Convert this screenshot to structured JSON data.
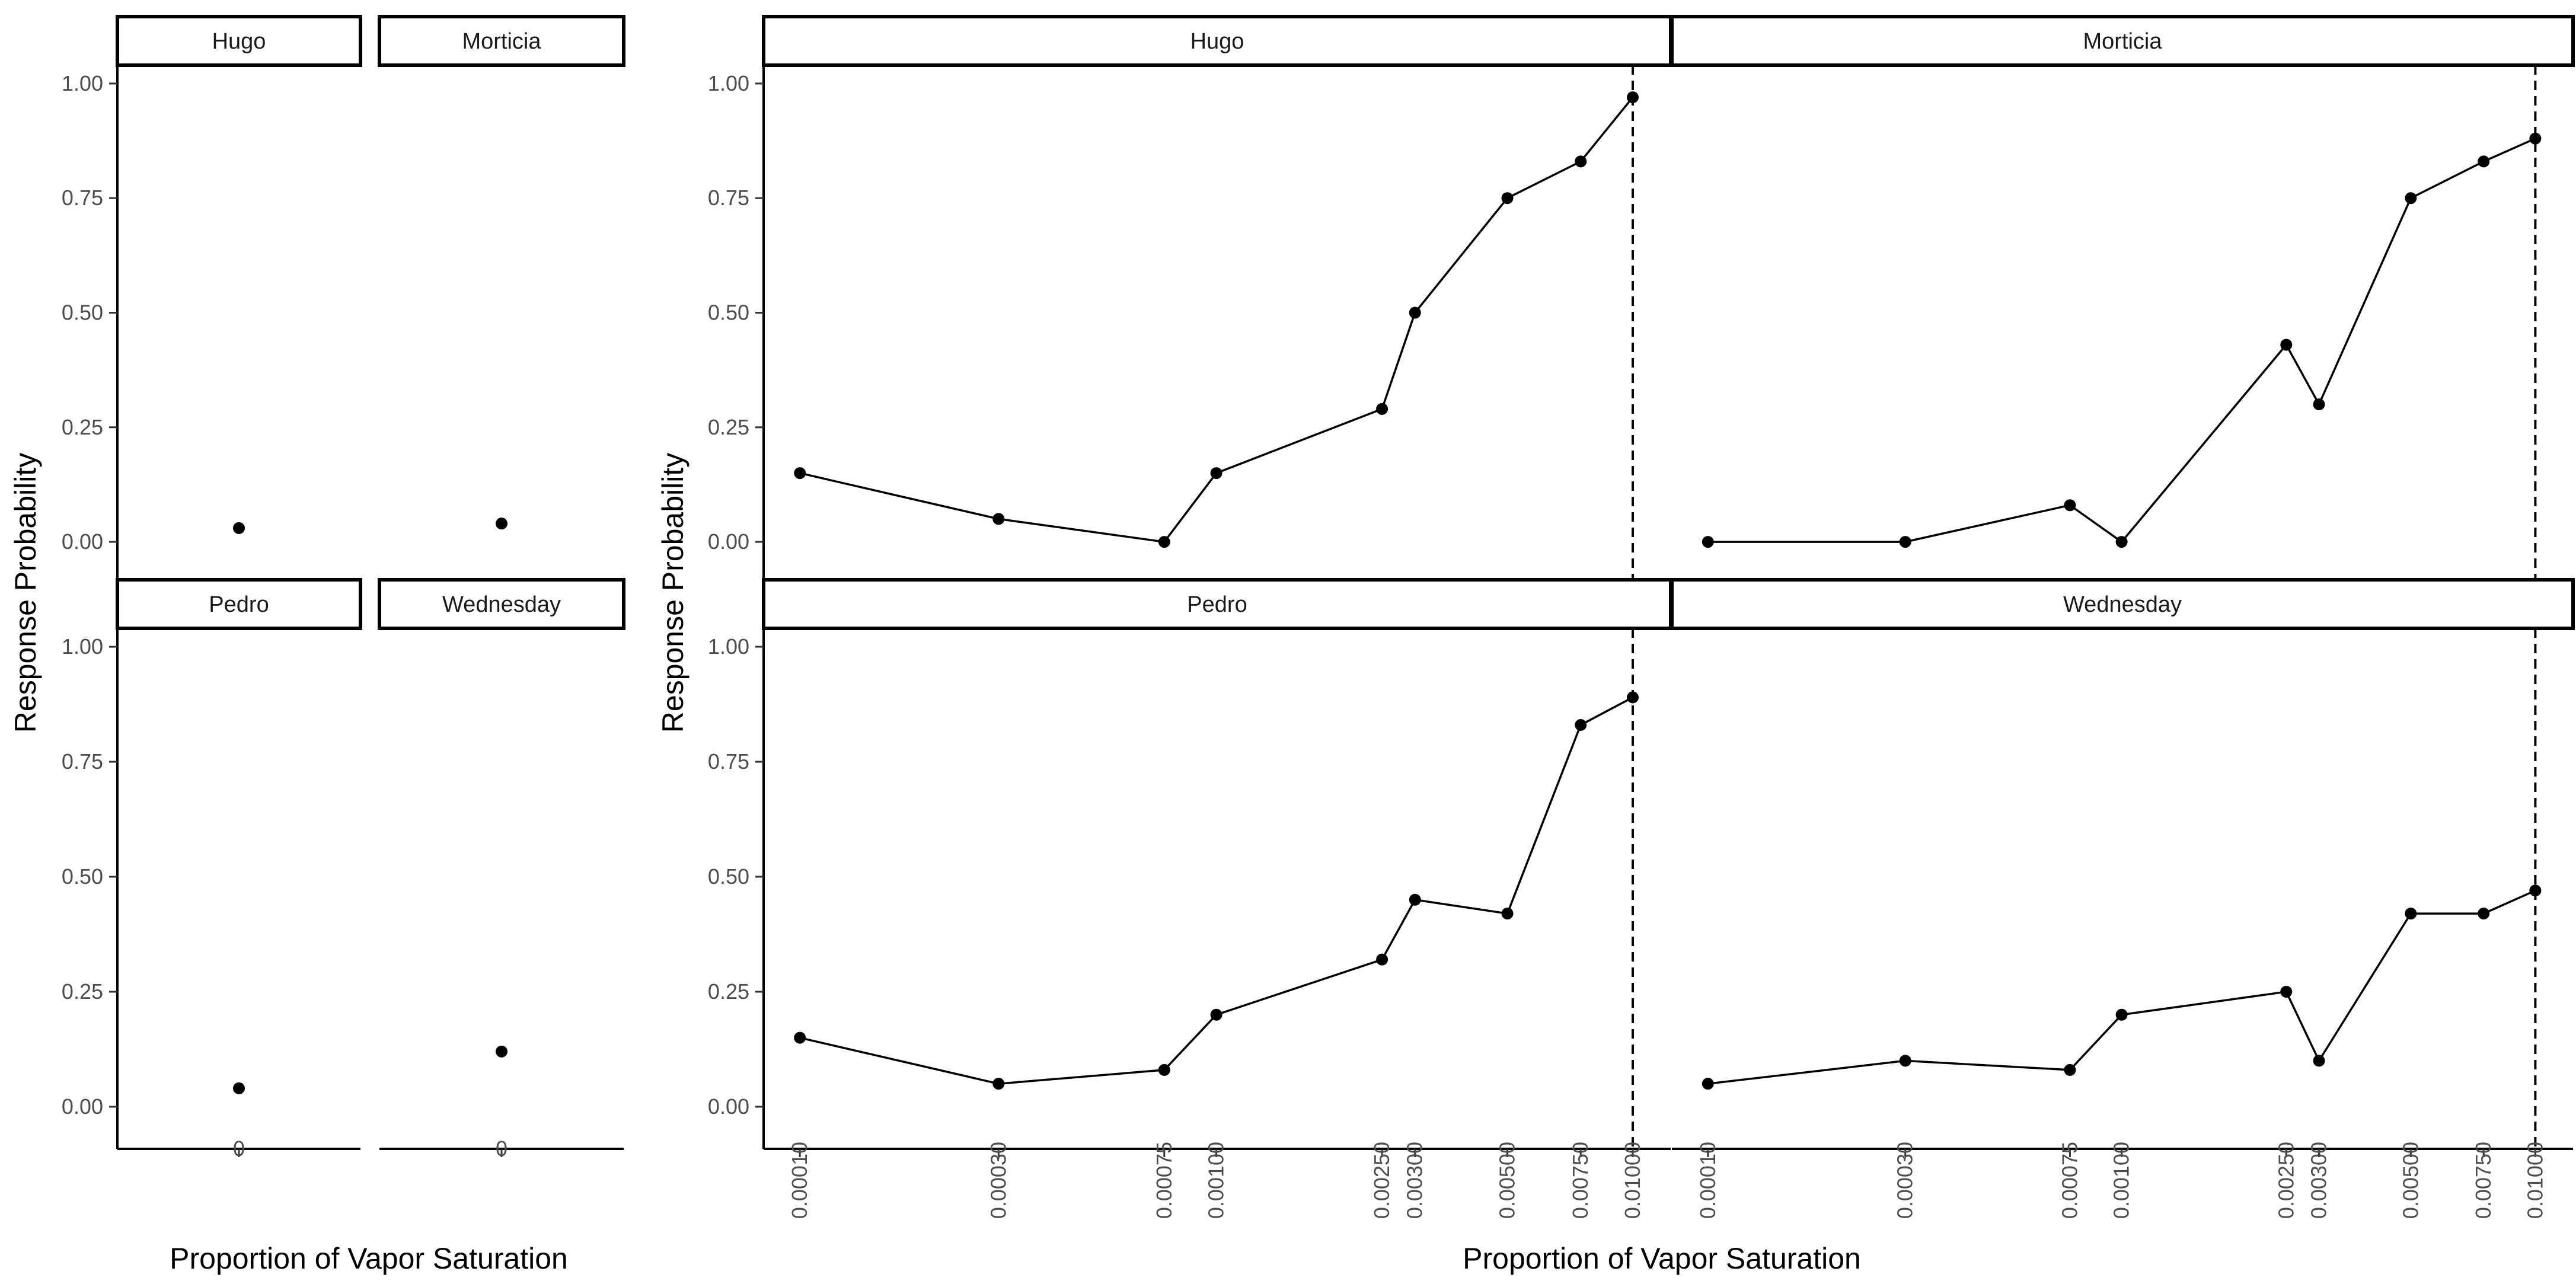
{
  "chart_data": [
    {
      "type": "scatter",
      "xlabel": "Proportion of Vapor Saturation",
      "ylabel": "Response Probability",
      "ylim": [
        0,
        1
      ],
      "y_ticks": [
        "0.00",
        "0.25",
        "0.50",
        "0.75",
        "1.00"
      ],
      "x_ticks": [
        "0"
      ],
      "grid": false,
      "panels": [
        {
          "name": "Hugo",
          "x": [
            0
          ],
          "y": [
            0.03
          ]
        },
        {
          "name": "Morticia",
          "x": [
            0
          ],
          "y": [
            0.04
          ]
        },
        {
          "name": "Pedro",
          "x": [
            0
          ],
          "y": [
            0.04
          ]
        },
        {
          "name": "Wednesday",
          "x": [
            0
          ],
          "y": [
            0.12
          ]
        }
      ]
    },
    {
      "type": "line",
      "xlabel": "Proportion of Vapor Saturation",
      "ylabel": "Response Probability",
      "ylim": [
        0,
        1
      ],
      "x_scale": "log",
      "y_ticks": [
        "0.00",
        "0.25",
        "0.50",
        "0.75",
        "1.00"
      ],
      "x": [
        0.0001,
        0.0003,
        0.00075,
        0.001,
        0.0025,
        0.003,
        0.005,
        0.0075,
        0.01
      ],
      "x_ticks": [
        "0.00010",
        "0.00030",
        "0.00075",
        "0.00100",
        "0.00250",
        "0.00300",
        "0.00500",
        "0.00750",
        "0.01000"
      ],
      "reference_line": {
        "x": 0.01,
        "style": "dashed"
      },
      "grid": false,
      "panels": [
        {
          "name": "Hugo",
          "values": [
            0.15,
            0.05,
            0.0,
            0.15,
            0.29,
            0.5,
            0.75,
            0.83,
            0.97
          ]
        },
        {
          "name": "Morticia",
          "values": [
            0.0,
            0.0,
            0.08,
            0.0,
            0.43,
            0.3,
            0.75,
            0.83,
            0.88
          ]
        },
        {
          "name": "Pedro",
          "values": [
            0.15,
            0.05,
            0.08,
            0.2,
            0.32,
            0.45,
            0.42,
            0.83,
            0.89
          ]
        },
        {
          "name": "Wednesday",
          "values": [
            0.05,
            0.1,
            0.08,
            0.2,
            0.25,
            0.1,
            0.42,
            0.42,
            0.47
          ]
        }
      ]
    }
  ]
}
